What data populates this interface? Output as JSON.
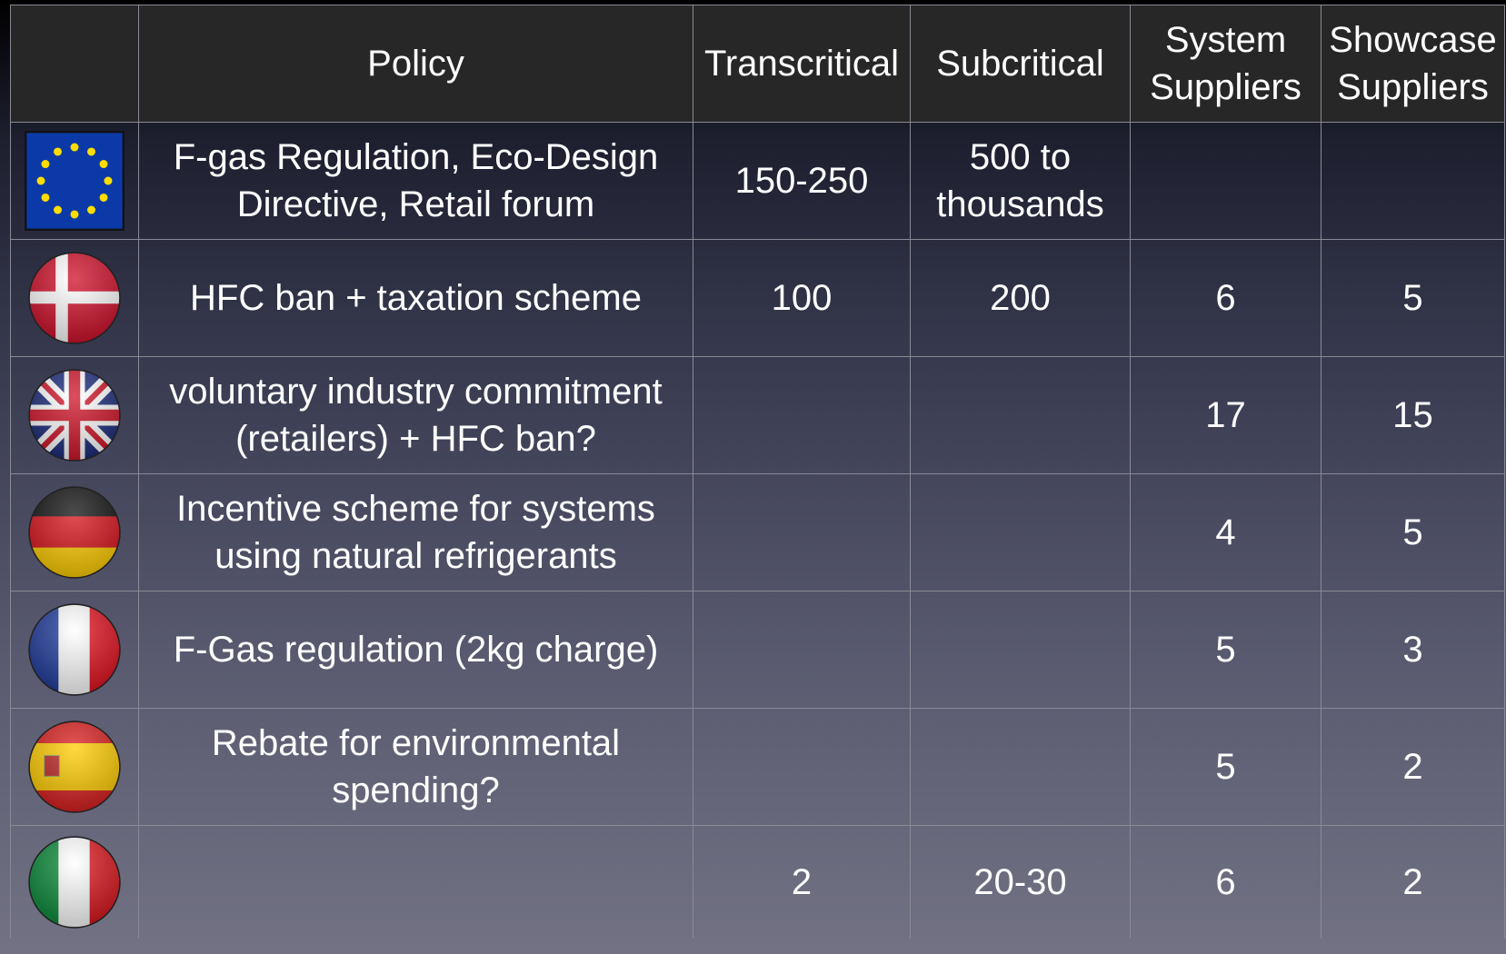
{
  "table": {
    "header": [
      "Policy",
      "Transcritical",
      "Subcritical",
      "System Suppliers",
      "Showcase Suppliers"
    ],
    "rows": [
      {
        "policy": "F-gas Regulation, Eco-Design Directive, Retail forum",
        "transcritical": "150-250",
        "subcritical": "500 to thousands"
      },
      {
        "policy": "HFC ban + taxation scheme",
        "transcritical": 100,
        "subcritical": 200,
        "system_suppliers": 6,
        "showcase_suppliers": 5
      },
      {
        "policy": "voluntary industry commitment (retailers) + HFC ban?",
        "system_suppliers": 17,
        "showcase_suppliers": 15
      },
      {
        "policy": "Incentive scheme for systems using natural refrigerants",
        "system_suppliers": 4,
        "showcase_suppliers": 5
      },
      {
        "policy": "F-Gas regulation (2kg charge)",
        "system_suppliers": 5,
        "showcase_suppliers": 3
      },
      {
        "policy": "Rebate for environmental spending?",
        "system_suppliers": 5,
        "showcase_suppliers": 2
      },
      {
        "transcritical": 2,
        "subcritical": "20-30",
        "system_suppliers": 6,
        "showcase_suppliers": 2
      }
    ]
  }
}
